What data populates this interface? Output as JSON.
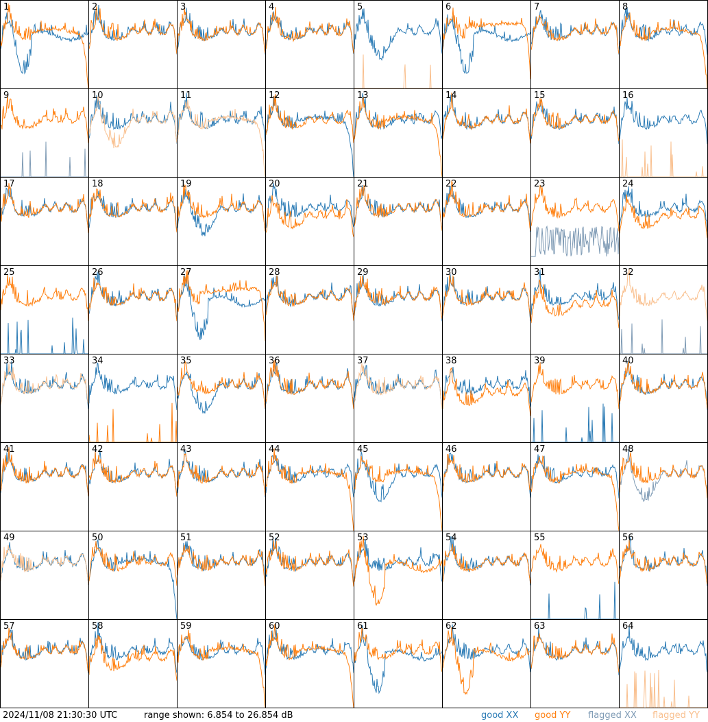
{
  "footer": {
    "timestamp": "2024/11/08 21:30:30 UTC",
    "range_text": "range shown: 6.854 to 26.854 dB"
  },
  "legend": [
    {
      "key": "good_xx",
      "label": "good XX",
      "color": "#2b7bb5"
    },
    {
      "key": "good_yy",
      "label": "good YY",
      "color": "#ff7f0e"
    },
    {
      "key": "flagged_xx",
      "label": "flagged XX",
      "color": "#7f9bb5"
    },
    {
      "key": "flagged_yy",
      "label": "flagged YY",
      "color": "#f9c08f"
    }
  ],
  "chart_data": {
    "type": "line",
    "grid": "8x8 small multiples",
    "y_unit": "dB",
    "ylim": [
      6.854,
      26.854
    ],
    "panels": [
      {
        "id": 1,
        "xx": "dip_deep",
        "yy": "rolloff",
        "flag": "none"
      },
      {
        "id": 2,
        "xx": "normal",
        "yy": "normal",
        "flag": "none"
      },
      {
        "id": 3,
        "xx": "normal",
        "yy": "normal",
        "flag": "none"
      },
      {
        "id": 4,
        "xx": "normal",
        "yy": "normal",
        "flag": "none"
      },
      {
        "id": 5,
        "xx": "dip",
        "yy": "spikes_bottom",
        "flag": "yy"
      },
      {
        "id": 6,
        "xx": "dip_deep",
        "yy": "flat_high",
        "flag": "none"
      },
      {
        "id": 7,
        "xx": "normal",
        "yy": "normal",
        "flag": "none"
      },
      {
        "id": 8,
        "xx": "normal",
        "yy": "rolloff",
        "flag": "none"
      },
      {
        "id": 9,
        "xx": "spikes_bottom",
        "yy": "normal",
        "flag": "xx"
      },
      {
        "id": 10,
        "xx": "normal",
        "yy": "dip",
        "flag": "yy"
      },
      {
        "id": 11,
        "xx": "normal",
        "yy": "rolloff",
        "flag": "yy"
      },
      {
        "id": 12,
        "xx": "rolloff",
        "yy": "normal",
        "flag": "none"
      },
      {
        "id": 13,
        "xx": "normal",
        "yy": "rolloff",
        "flag": "none"
      },
      {
        "id": 14,
        "xx": "normal",
        "yy": "normal",
        "flag": "none"
      },
      {
        "id": 15,
        "xx": "normal",
        "yy": "normal",
        "flag": "none"
      },
      {
        "id": 16,
        "xx": "normal",
        "yy": "spikes_bottom",
        "flag": "yy"
      },
      {
        "id": 17,
        "xx": "normal",
        "yy": "normal",
        "flag": "none"
      },
      {
        "id": 18,
        "xx": "normal",
        "yy": "normal",
        "flag": "none"
      },
      {
        "id": 19,
        "xx": "dip",
        "yy": "normal",
        "flag": "none"
      },
      {
        "id": 20,
        "xx": "normal",
        "yy": "low",
        "flag": "none"
      },
      {
        "id": 21,
        "xx": "normal",
        "yy": "normal",
        "flag": "none"
      },
      {
        "id": 22,
        "xx": "normal",
        "yy": "normal",
        "flag": "none"
      },
      {
        "id": 23,
        "xx": "noisy_low",
        "yy": "normal",
        "flag": "xx"
      },
      {
        "id": 24,
        "xx": "normal",
        "yy": "low",
        "flag": "none"
      },
      {
        "id": 25,
        "xx": "spikes_bottom",
        "yy": "normal",
        "flag": "none"
      },
      {
        "id": 26,
        "xx": "normal",
        "yy": "normal",
        "flag": "none"
      },
      {
        "id": 27,
        "xx": "dip_deep",
        "yy": "flat_high",
        "flag": "none"
      },
      {
        "id": 28,
        "xx": "normal",
        "yy": "normal",
        "flag": "none"
      },
      {
        "id": 29,
        "xx": "normal",
        "yy": "normal",
        "flag": "none"
      },
      {
        "id": 30,
        "xx": "normal",
        "yy": "normal",
        "flag": "none"
      },
      {
        "id": 31,
        "xx": "normal",
        "yy": "low",
        "flag": "none"
      },
      {
        "id": 32,
        "xx": "spikes_bottom",
        "yy": "normal",
        "flag": "both"
      },
      {
        "id": 33,
        "xx": "normal",
        "yy": "normal",
        "flag": "yy"
      },
      {
        "id": 34,
        "xx": "normal",
        "yy": "spikes_bottom",
        "flag": "none"
      },
      {
        "id": 35,
        "xx": "dip",
        "yy": "normal",
        "flag": "none"
      },
      {
        "id": 36,
        "xx": "normal",
        "yy": "normal",
        "flag": "none"
      },
      {
        "id": 37,
        "xx": "normal",
        "yy": "normal",
        "flag": "yy"
      },
      {
        "id": 38,
        "xx": "normal",
        "yy": "low",
        "flag": "none"
      },
      {
        "id": 39,
        "xx": "spikes_bottom",
        "yy": "normal",
        "flag": "none"
      },
      {
        "id": 40,
        "xx": "normal",
        "yy": "normal",
        "flag": "none"
      },
      {
        "id": 41,
        "xx": "normal",
        "yy": "normal",
        "flag": "none"
      },
      {
        "id": 42,
        "xx": "normal",
        "yy": "normal",
        "flag": "none"
      },
      {
        "id": 43,
        "xx": "normal",
        "yy": "normal",
        "flag": "none"
      },
      {
        "id": 44,
        "xx": "normal",
        "yy": "rolloff",
        "flag": "none"
      },
      {
        "id": 45,
        "xx": "dip",
        "yy": "rolloff",
        "flag": "none"
      },
      {
        "id": 46,
        "xx": "normal",
        "yy": "normal",
        "flag": "none"
      },
      {
        "id": 47,
        "xx": "normal",
        "yy": "rolloff",
        "flag": "none"
      },
      {
        "id": 48,
        "xx": "dip",
        "yy": "normal",
        "flag": "xx"
      },
      {
        "id": 49,
        "xx": "normal",
        "yy": "normal",
        "flag": "yy"
      },
      {
        "id": 50,
        "xx": "rolloff",
        "yy": "normal",
        "flag": "none"
      },
      {
        "id": 51,
        "xx": "normal",
        "yy": "normal",
        "flag": "none"
      },
      {
        "id": 52,
        "xx": "normal",
        "yy": "normal",
        "flag": "none"
      },
      {
        "id": 53,
        "xx": "normal",
        "yy": "dip_deep",
        "flag": "none"
      },
      {
        "id": 54,
        "xx": "normal",
        "yy": "normal",
        "flag": "none"
      },
      {
        "id": 55,
        "xx": "spikes_bottom",
        "yy": "normal",
        "flag": "none"
      },
      {
        "id": 56,
        "xx": "normal",
        "yy": "normal",
        "flag": "none"
      },
      {
        "id": 57,
        "xx": "normal",
        "yy": "normal",
        "flag": "none"
      },
      {
        "id": 58,
        "xx": "normal",
        "yy": "low",
        "flag": "none"
      },
      {
        "id": 59,
        "xx": "normal",
        "yy": "rolloff",
        "flag": "none"
      },
      {
        "id": 60,
        "xx": "normal",
        "yy": "rolloff",
        "flag": "none"
      },
      {
        "id": 61,
        "xx": "dip_deep",
        "yy": "normal",
        "flag": "none"
      },
      {
        "id": 62,
        "xx": "normal",
        "yy": "dip_deep",
        "flag": "none"
      },
      {
        "id": 63,
        "xx": "normal",
        "yy": "normal",
        "flag": "none"
      },
      {
        "id": 64,
        "xx": "normal",
        "yy": "spikes_bottom",
        "flag": "yy"
      }
    ]
  }
}
